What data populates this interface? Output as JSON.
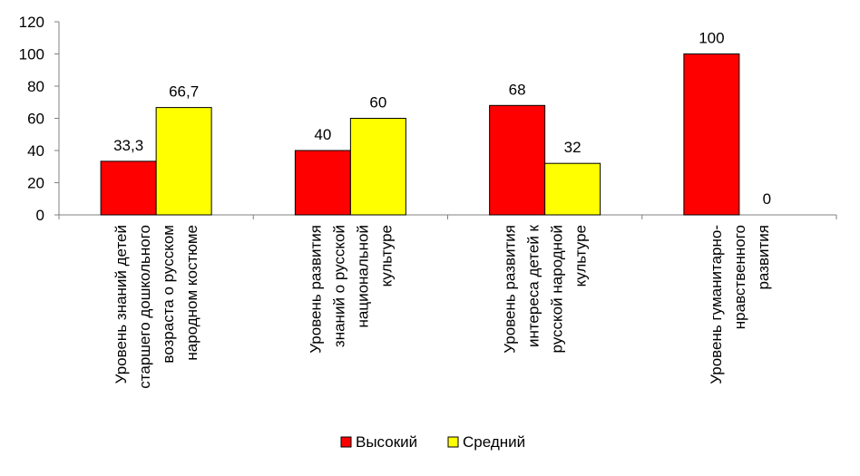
{
  "chart_data": {
    "type": "bar",
    "title": "",
    "xlabel": "",
    "ylabel": "",
    "ylim": [
      0,
      120
    ],
    "yticks": [
      0,
      20,
      40,
      60,
      80,
      100,
      120
    ],
    "grid": false,
    "legend_position": "bottom",
    "categories": [
      [
        "Уровень знаний детей",
        "старшего дошкольного",
        "возраста о русском",
        "народном костюме"
      ],
      [
        "Уровень  развития",
        "знаний о русской",
        "национальной",
        "культуре"
      ],
      [
        "Уровень развития",
        "интереса детей к",
        "русской народной",
        "культуре"
      ],
      [
        "Уровень гуманитарно-",
        "нравственного",
        "развития"
      ]
    ],
    "series": [
      {
        "name": "Высокий",
        "color": "#ff0000",
        "values": [
          33.3,
          40,
          68,
          100
        ],
        "labels": [
          "33,3",
          "40",
          "68",
          "100"
        ]
      },
      {
        "name": "Средний",
        "color": "#ffff00",
        "values": [
          66.7,
          60,
          32,
          0
        ],
        "labels": [
          "66,7",
          "60",
          "32",
          "0"
        ]
      }
    ]
  }
}
